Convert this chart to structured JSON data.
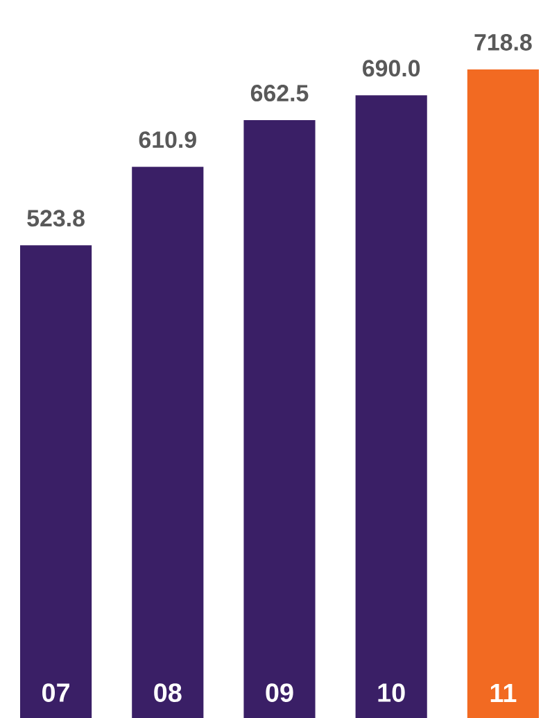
{
  "chart_data": {
    "type": "bar",
    "categories": [
      "07",
      "08",
      "09",
      "10",
      "11"
    ],
    "values": [
      523.8,
      610.9,
      662.5,
      690.0,
      718.8
    ],
    "value_labels": [
      "523.8",
      "610.9",
      "662.5",
      "690.0",
      "718.8"
    ],
    "colors": [
      "#3a1f66",
      "#3a1f66",
      "#3a1f66",
      "#3a1f66",
      "#f26a22"
    ]
  }
}
